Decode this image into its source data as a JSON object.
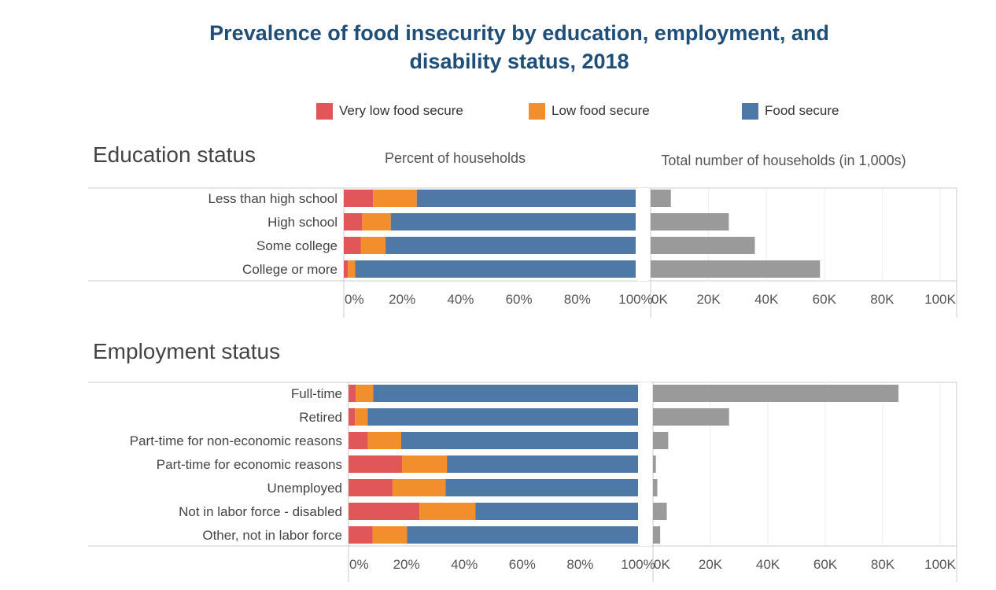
{
  "title_line1": "Prevalence of food insecurity by education, employment, and",
  "title_line2": "disability status, 2018",
  "legend": [
    {
      "label": "Very low food secure",
      "color": "#e15759"
    },
    {
      "label": "Low food secure",
      "color": "#f28e2b"
    },
    {
      "label": "Food secure",
      "color": "#4e79a7"
    }
  ],
  "total_bar_color": "#9a9a9a",
  "chart_data": [
    {
      "type": "bar",
      "section": "Education status",
      "subtitle": "Percent of households",
      "stacked": true,
      "orientation": "horizontal",
      "categories": [
        "Less than high school",
        "High school",
        "Some college",
        "College or more"
      ],
      "series": [
        {
          "name": "Very low food secure",
          "values": [
            10,
            6.3,
            5.8,
            1.4
          ]
        },
        {
          "name": "Low food secure",
          "values": [
            15,
            9.8,
            8.5,
            2.5
          ]
        },
        {
          "name": "Food secure",
          "values": [
            75,
            83.9,
            85.7,
            96.1
          ]
        }
      ],
      "xlim": [
        0,
        100
      ],
      "xticks": [
        "0%",
        "20%",
        "40%",
        "60%",
        "80%",
        "100%"
      ]
    },
    {
      "type": "bar",
      "section": "Education status",
      "subtitle": "Total number of households (in 1,000s)",
      "orientation": "horizontal",
      "categories": [
        "Less than high school",
        "High school",
        "Some college",
        "College or more"
      ],
      "values": [
        7000,
        27000,
        36000,
        58500
      ],
      "xlim": [
        0,
        100000
      ],
      "xticks": [
        "0K",
        "20K",
        "40K",
        "60K",
        "80K",
        "100K"
      ]
    },
    {
      "type": "bar",
      "section": "Employment status",
      "stacked": true,
      "orientation": "horizontal",
      "categories": [
        "Full-time",
        "Retired",
        "Part-time for non-economic reasons",
        "Part-time for economic reasons",
        "Unemployed",
        "Not in labor force - disabled",
        "Other, not in labor force"
      ],
      "series": [
        {
          "name": "Very low food secure",
          "values": [
            2.5,
            2.2,
            6.7,
            18.5,
            15.2,
            24.5,
            8.3
          ]
        },
        {
          "name": "Low food secure",
          "values": [
            6,
            4.4,
            11.5,
            15.5,
            18.3,
            19.3,
            11.9
          ]
        },
        {
          "name": "Food secure",
          "values": [
            91.5,
            93.4,
            81.8,
            66,
            66.5,
            56.2,
            79.8
          ]
        }
      ],
      "xlim": [
        0,
        100
      ],
      "xticks": [
        "0%",
        "20%",
        "40%",
        "60%",
        "80%",
        "100%"
      ]
    },
    {
      "type": "bar",
      "section": "Employment status",
      "orientation": "horizontal",
      "categories": [
        "Full-time",
        "Retired",
        "Part-time for non-economic reasons",
        "Part-time for economic reasons",
        "Unemployed",
        "Not in labor force - disabled",
        "Other, not in labor force"
      ],
      "values": [
        85500,
        26500,
        5300,
        1000,
        1500,
        4800,
        2500
      ],
      "xlim": [
        0,
        100000
      ],
      "xticks": [
        "0K",
        "20K",
        "40K",
        "60K",
        "80K",
        "100K"
      ]
    }
  ]
}
